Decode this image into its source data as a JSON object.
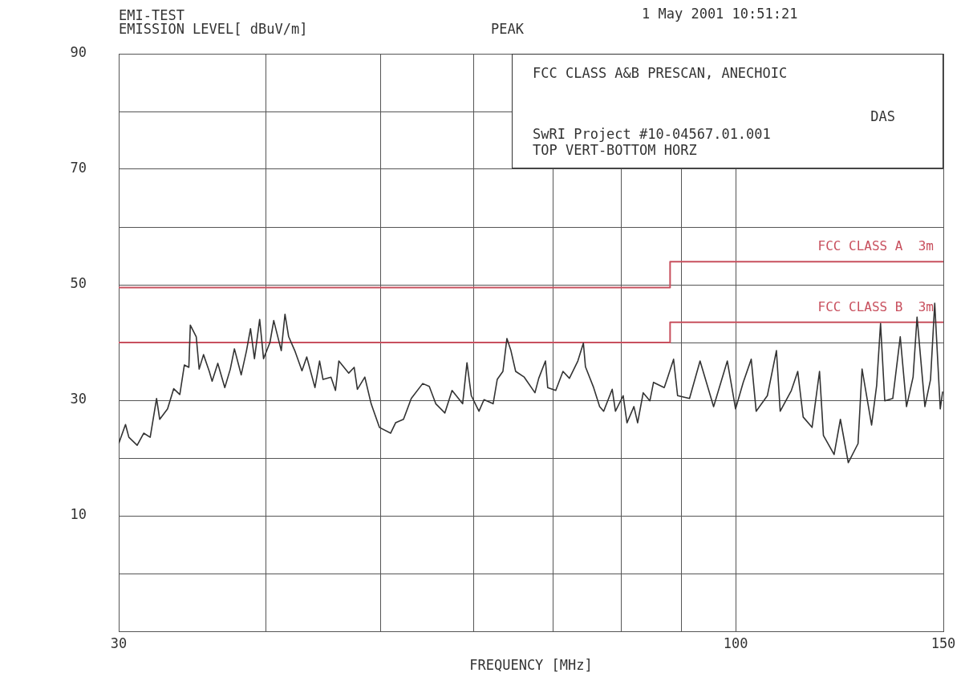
{
  "chart_data": {
    "type": "line",
    "title": "EMI-TEST",
    "ylabel": "EMISSION LEVEL[ dBuV/m]",
    "xlabel": "FREQUENCY [MHz]",
    "annotations": [
      "PEAK",
      "1 May 2001   10:51:21",
      "FCC CLASS A&B PRESCAN, ANECHOIC",
      "DAS",
      "SwRI Project #10-04567.01.001",
      "TOP VERT-BOTTOM HORZ"
    ],
    "log": "x",
    "xlim": [
      30,
      150
    ],
    "xticks": [
      30,
      {
        "value": 40,
        "label": null
      },
      {
        "value": 50,
        "label": null
      },
      {
        "value": 60,
        "label": null
      },
      {
        "value": 70,
        "label": null
      },
      {
        "value": 80,
        "label": null
      },
      {
        "value": 90,
        "label": null
      },
      100,
      150
    ],
    "ylim": [
      -10,
      90
    ],
    "yticks": [
      {
        "value": -10,
        "label": null
      },
      {
        "value": 0,
        "label": null
      },
      10,
      {
        "value": 20,
        "label": null
      },
      30,
      {
        "value": 40,
        "label": null
      },
      50,
      {
        "value": 60,
        "label": null
      },
      70,
      {
        "value": 80,
        "label": null
      },
      90
    ],
    "grid": true,
    "legend": false,
    "marker": "none",
    "series": [
      {
        "type": "line",
        "color": "#333333",
        "x": [
          30,
          30.4,
          30.6,
          31.1,
          31.5,
          31.9,
          32.3,
          32.5,
          33.0,
          33.4,
          33.8,
          34.1,
          34.4,
          34.5,
          34.9,
          35.1,
          35.4,
          35.8,
          36.0,
          36.4,
          36.9,
          37.3,
          37.6,
          38.1,
          38.5,
          38.8,
          39.1,
          39.5,
          39.8,
          40.3,
          40.6,
          41.2,
          41.5,
          41.8,
          42.3,
          42.9,
          43.3,
          44.0,
          44.4,
          44.7,
          45.4,
          45.8,
          46.1,
          47.0,
          47.5,
          47.8,
          48.5,
          49.1,
          49.9,
          51.0,
          51.5,
          52.3,
          52.9,
          53.1,
          54.3,
          55.0,
          55.7,
          56.7,
          57.5,
          58.7,
          59.2,
          59.7,
          60.6,
          61.2,
          62.3,
          62.8,
          63.5,
          64.0,
          64.5,
          65.1,
          66.2,
          67.6,
          68.1,
          69.0,
          69.3,
          70.4,
          71.4,
          72.3,
          73.5,
          74.3,
          74.6,
          75.8,
          76.7,
          77.3,
          78.6,
          79.1,
          80.3,
          80.9,
          82.0,
          82.6,
          83.5,
          84.6,
          85.2,
          87.0,
          87.6,
          88.6,
          89.3,
          91.4,
          93.3,
          95.8,
          98.4,
          100.0,
          101.5,
          103.1,
          104.1,
          106.4,
          108.3,
          109.1,
          111.5,
          112.9,
          114.1,
          116.1,
          117.8,
          118.7,
          121.2,
          122.7,
          124.6,
          127.0,
          128.0,
          130.4,
          131.7,
          132.7,
          133.8,
          135.9,
          137.9,
          139.6,
          141.4,
          142.5,
          144.7,
          146.3,
          147.5,
          149.1,
          149.8
        ],
        "values": [
          22.5,
          25.8,
          23.6,
          22.2,
          24.3,
          23.6,
          30.3,
          26.7,
          28.5,
          32.0,
          31.0,
          36.1,
          35.7,
          43.0,
          41.0,
          35.4,
          37.9,
          35.0,
          33.3,
          36.4,
          32.2,
          35.4,
          38.9,
          34.4,
          38.6,
          42.4,
          37.2,
          44.0,
          37.2,
          40.0,
          43.8,
          38.6,
          44.9,
          41.0,
          38.6,
          35.1,
          37.5,
          32.2,
          36.8,
          33.6,
          34.0,
          31.7,
          36.8,
          34.7,
          35.7,
          31.9,
          34.0,
          29.4,
          25.3,
          24.3,
          26.1,
          26.7,
          29.4,
          30.3,
          32.9,
          32.4,
          29.4,
          27.8,
          31.7,
          29.4,
          36.5,
          30.8,
          28.1,
          30.1,
          29.4,
          33.6,
          35.0,
          40.7,
          38.6,
          35.0,
          34.0,
          31.3,
          33.8,
          36.8,
          32.2,
          31.7,
          35.0,
          33.8,
          36.8,
          39.9,
          35.8,
          32.2,
          28.9,
          28.1,
          31.9,
          28.1,
          30.8,
          26.1,
          28.9,
          26.1,
          31.3,
          29.9,
          33.1,
          32.2,
          34.0,
          37.1,
          30.8,
          30.3,
          36.8,
          28.9,
          36.8,
          28.5,
          33.1,
          37.1,
          28.1,
          30.8,
          38.6,
          28.1,
          31.7,
          35.0,
          27.1,
          25.3,
          35.0,
          23.9,
          20.6,
          26.7,
          19.2,
          22.5,
          35.4,
          25.7,
          32.6,
          43.3,
          29.9,
          30.3,
          41.0,
          28.9,
          34.0,
          44.4,
          28.9,
          33.6,
          46.8,
          28.5,
          31.5
        ]
      },
      {
        "type": "step",
        "name": "FCC CLASS A  3m",
        "color": "#c8505e",
        "x": [
          30,
          88,
          150
        ],
        "values": [
          49.5,
          54,
          54
        ]
      },
      {
        "type": "step",
        "name": "FCC CLASS B  3m",
        "color": "#c8505e",
        "x": [
          30,
          88,
          150
        ],
        "values": [
          40,
          43.5,
          43.5
        ]
      }
    ]
  }
}
